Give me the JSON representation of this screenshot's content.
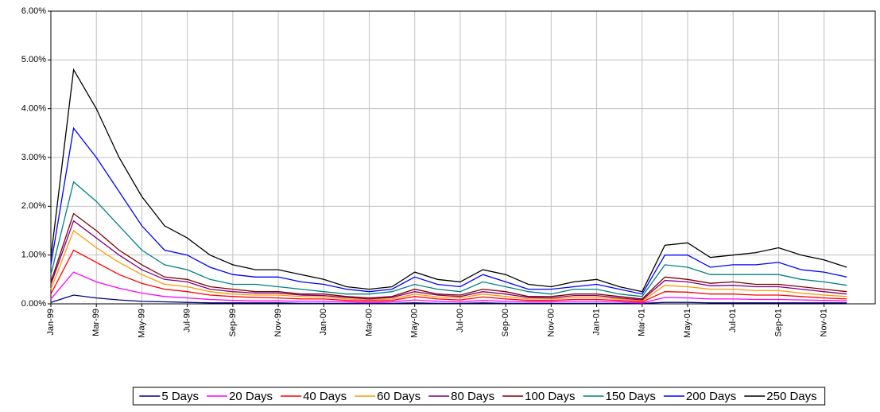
{
  "chart_data": {
    "type": "line",
    "categories": [
      "Jan-99",
      null,
      "Mar-99",
      null,
      "May-99",
      null,
      "Jul-99",
      null,
      "Sep-99",
      null,
      "Nov-99",
      null,
      "Jan-00",
      null,
      "Mar-00",
      null,
      "May-00",
      null,
      "Jul-00",
      null,
      "Sep-00",
      null,
      "Nov-00",
      null,
      "Jan-01",
      null,
      "Mar-01",
      null,
      "May-01",
      null,
      "Jul-01",
      null,
      "Sep-01",
      null,
      "Nov-01",
      null
    ],
    "ylim": [
      0,
      6
    ],
    "yticks": [
      {
        "value": 0,
        "label": "0.00%"
      },
      {
        "value": 1,
        "label": "1.00%"
      },
      {
        "value": 2,
        "label": "2.00%"
      },
      {
        "value": 3,
        "label": "3.00%"
      },
      {
        "value": 4,
        "label": "4.00%"
      },
      {
        "value": 5,
        "label": "5.00%"
      },
      {
        "value": 6,
        "label": "6.00%"
      }
    ],
    "grid": true,
    "legend": "bottom",
    "series": [
      {
        "name": "5 Days",
        "color": "#000080",
        "values": [
          0.03,
          0.18,
          0.12,
          0.08,
          0.05,
          0.04,
          0.03,
          0.02,
          0.02,
          0.02,
          0.02,
          0.01,
          0.01,
          0.01,
          0.01,
          0.01,
          0.02,
          0.01,
          0.01,
          0.02,
          0.01,
          0.01,
          0.01,
          0.01,
          0.01,
          0.01,
          0.01,
          0.03,
          0.03,
          0.02,
          0.02,
          0.02,
          0.02,
          0.02,
          0.02,
          0.02
        ]
      },
      {
        "name": "20 Days",
        "color": "#ff00ff",
        "values": [
          0.1,
          0.65,
          0.45,
          0.32,
          0.22,
          0.15,
          0.12,
          0.09,
          0.07,
          0.06,
          0.06,
          0.05,
          0.05,
          0.04,
          0.03,
          0.04,
          0.08,
          0.05,
          0.04,
          0.07,
          0.05,
          0.04,
          0.04,
          0.05,
          0.05,
          0.04,
          0.02,
          0.13,
          0.12,
          0.1,
          0.1,
          0.09,
          0.09,
          0.08,
          0.07,
          0.06
        ]
      },
      {
        "name": "40 Days",
        "color": "#ff0000",
        "values": [
          0.2,
          1.1,
          0.85,
          0.6,
          0.42,
          0.3,
          0.25,
          0.18,
          0.15,
          0.13,
          0.12,
          0.1,
          0.1,
          0.07,
          0.06,
          0.07,
          0.15,
          0.1,
          0.08,
          0.14,
          0.1,
          0.07,
          0.07,
          0.09,
          0.09,
          0.07,
          0.04,
          0.25,
          0.24,
          0.2,
          0.2,
          0.18,
          0.18,
          0.15,
          0.12,
          0.1
        ]
      },
      {
        "name": "60 Days",
        "color": "#ff9900",
        "values": [
          0.3,
          1.5,
          1.15,
          0.85,
          0.6,
          0.4,
          0.35,
          0.25,
          0.2,
          0.18,
          0.18,
          0.15,
          0.14,
          0.1,
          0.08,
          0.1,
          0.2,
          0.14,
          0.12,
          0.2,
          0.15,
          0.1,
          0.1,
          0.13,
          0.13,
          0.1,
          0.06,
          0.38,
          0.35,
          0.3,
          0.3,
          0.27,
          0.27,
          0.22,
          0.18,
          0.15
        ]
      },
      {
        "name": "80 Days",
        "color": "#800080",
        "values": [
          0.4,
          1.7,
          1.35,
          1.0,
          0.7,
          0.5,
          0.45,
          0.3,
          0.25,
          0.22,
          0.22,
          0.18,
          0.17,
          0.13,
          0.1,
          0.13,
          0.25,
          0.18,
          0.15,
          0.25,
          0.2,
          0.13,
          0.12,
          0.17,
          0.17,
          0.12,
          0.08,
          0.48,
          0.45,
          0.37,
          0.38,
          0.35,
          0.35,
          0.3,
          0.25,
          0.2
        ]
      },
      {
        "name": "100 Days",
        "color": "#800000",
        "values": [
          0.45,
          1.85,
          1.5,
          1.1,
          0.8,
          0.55,
          0.5,
          0.35,
          0.3,
          0.25,
          0.25,
          0.2,
          0.2,
          0.15,
          0.12,
          0.15,
          0.3,
          0.2,
          0.18,
          0.3,
          0.25,
          0.15,
          0.15,
          0.2,
          0.2,
          0.15,
          0.1,
          0.55,
          0.5,
          0.42,
          0.45,
          0.4,
          0.4,
          0.35,
          0.3,
          0.25
        ]
      },
      {
        "name": "150 Days",
        "color": "#008080",
        "values": [
          0.6,
          2.5,
          2.1,
          1.6,
          1.1,
          0.8,
          0.7,
          0.5,
          0.4,
          0.4,
          0.35,
          0.3,
          0.25,
          0.2,
          0.2,
          0.25,
          0.4,
          0.3,
          0.25,
          0.45,
          0.35,
          0.25,
          0.2,
          0.3,
          0.3,
          0.2,
          0.15,
          0.8,
          0.75,
          0.6,
          0.6,
          0.6,
          0.6,
          0.5,
          0.45,
          0.38
        ]
      },
      {
        "name": "200 Days",
        "color": "#0000ff",
        "values": [
          0.8,
          3.6,
          3.0,
          2.3,
          1.6,
          1.1,
          1.0,
          0.75,
          0.6,
          0.55,
          0.55,
          0.45,
          0.4,
          0.3,
          0.25,
          0.3,
          0.55,
          0.4,
          0.35,
          0.6,
          0.45,
          0.3,
          0.3,
          0.35,
          0.4,
          0.3,
          0.2,
          1.0,
          1.0,
          0.75,
          0.8,
          0.8,
          0.85,
          0.7,
          0.65,
          0.55
        ]
      },
      {
        "name": "250 Days",
        "color": "#000000",
        "values": [
          0.95,
          4.8,
          4.0,
          3.0,
          2.2,
          1.6,
          1.35,
          1.0,
          0.8,
          0.7,
          0.7,
          0.6,
          0.5,
          0.35,
          0.3,
          0.35,
          0.65,
          0.5,
          0.45,
          0.7,
          0.6,
          0.4,
          0.35,
          0.45,
          0.5,
          0.35,
          0.25,
          1.2,
          1.25,
          0.95,
          1.0,
          1.05,
          1.15,
          1.0,
          0.9,
          0.75
        ]
      }
    ]
  }
}
